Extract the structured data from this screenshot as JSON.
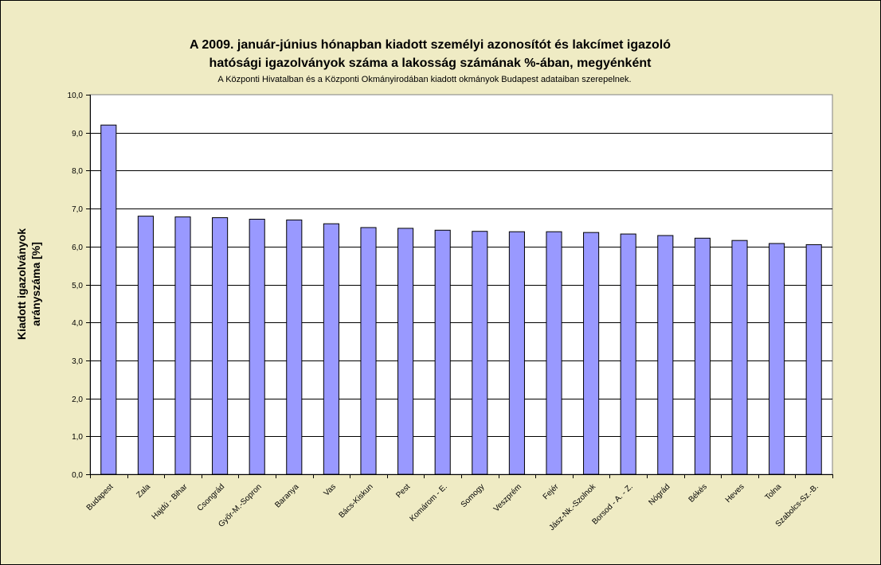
{
  "chart_data": {
    "type": "bar",
    "title_line1": "A 2009. január-június hónapban kiadott személyi azonosítót és lakcímet igazoló",
    "title_line2": "hatósági igazolványok száma a lakosság  számának %-ában, megyénként",
    "subtitle": "A Központi Hivatalban és a Központi Okmányirodában kiadott okmányok Budapest adataiban szerepelnek.",
    "ylabel_line1": "Kiadott igazolványok",
    "ylabel_line2": "arányszáma [%]",
    "xlabel": "",
    "ylim": [
      0,
      10
    ],
    "y_ticks": [
      "0,0",
      "1,0",
      "2,0",
      "3,0",
      "4,0",
      "5,0",
      "6,0",
      "7,0",
      "8,0",
      "9,0",
      "10,0"
    ],
    "grid": true,
    "bar_color": "#9999ff",
    "plot_background": "#ffffff",
    "categories": [
      "Budapest",
      "Zala",
      "Hajdú - Bihar",
      "Csongrád",
      "Győr-M.-Sopron",
      "Baranya",
      "Vas",
      "Bács-Kiskun",
      "Pest",
      "Komárom - E.",
      "Somogy",
      "Veszprém",
      "Fejér",
      "Jász-Nk.-Szolnok",
      "Borsod - A. - Z.",
      "Nógrád",
      "Békés",
      "Heves",
      "Tolna",
      "Szabolcs-Sz.-B."
    ],
    "values": [
      9.2,
      6.8,
      6.78,
      6.76,
      6.72,
      6.7,
      6.6,
      6.5,
      6.48,
      6.43,
      6.4,
      6.39,
      6.39,
      6.37,
      6.33,
      6.29,
      6.22,
      6.16,
      6.08,
      6.05
    ]
  }
}
